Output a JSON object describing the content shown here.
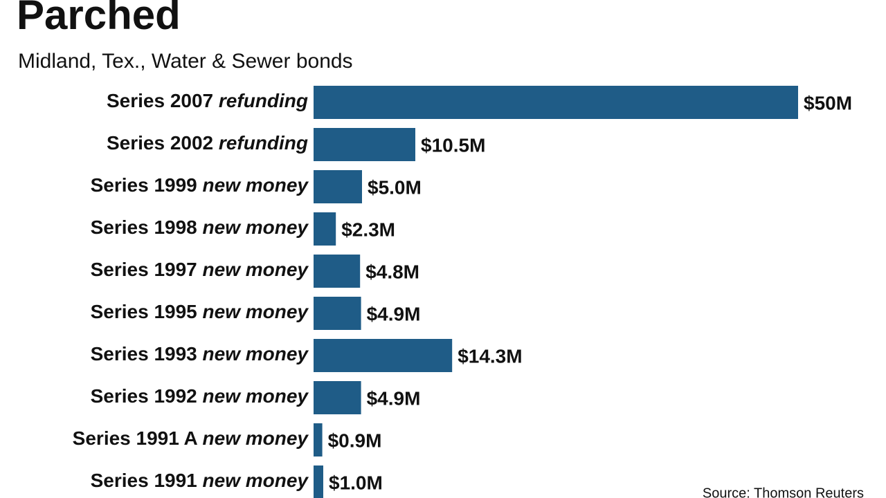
{
  "chart_data": {
    "type": "hbar",
    "title": "Parched",
    "subtitle": "Midland, Tex., Water & Sewer bonds",
    "categories": [
      "Series 2007",
      "Series 2002",
      "Series 1999",
      "Series 1998",
      "Series 1997",
      "Series 1995",
      "Series 1993",
      "Series 1992",
      "Series 1991 A",
      "Series 1991"
    ],
    "category_notes": [
      "refunding",
      "refunding",
      "new money",
      "new money",
      "new money",
      "new money",
      "new money",
      "new money",
      "new money",
      "new money"
    ],
    "values": [
      50,
      10.5,
      5.0,
      2.3,
      4.8,
      4.9,
      14.3,
      4.9,
      0.9,
      1.0
    ],
    "value_labels": [
      "$50M",
      "$10.5M",
      "$5.0M",
      "$2.3M",
      "$4.8M",
      "$4.9M",
      "$14.3M",
      "$4.9M",
      "$0.9M",
      "$1.0M"
    ],
    "color": "#1f5c87",
    "source": "Source: Thomson Reuters"
  }
}
